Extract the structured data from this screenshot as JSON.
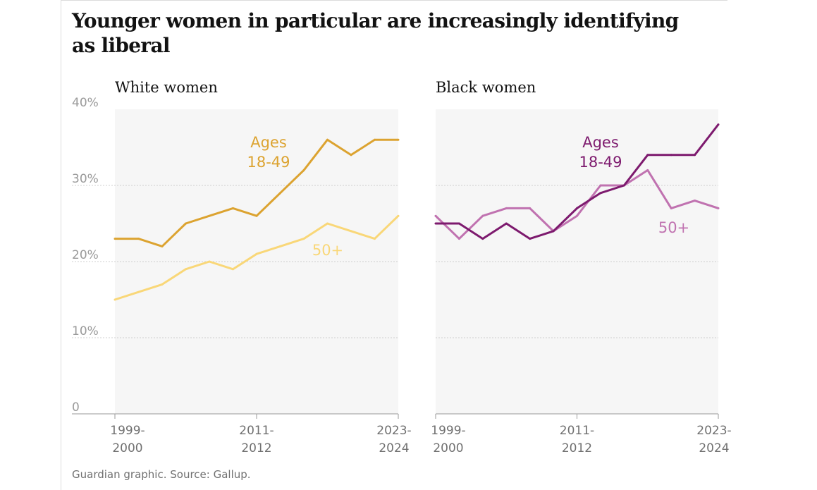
{
  "headline": "Younger women in particular are increasingly identifying as liberal",
  "source": "Guardian graphic. Source: Gallup.",
  "colors": {
    "panel_bg": "#f6f6f6",
    "gridline": "#cfcfcf",
    "tick_text": "#707070",
    "white_18_49": "#dca330",
    "white_50_plus": "#f9d778",
    "black_18_49": "#7d1a6e",
    "black_50_plus": "#c072b0"
  },
  "chart_data": [
    {
      "type": "line",
      "title": "White women",
      "x": [
        "1999-2000",
        "2001-2002",
        "2003-2004",
        "2005-2006",
        "2007-2008",
        "2009-2010",
        "2011-2012",
        "2013-2014",
        "2015-2016",
        "2017-2018",
        "2019-2020",
        "2021-2022",
        "2023-2024"
      ],
      "x_tick_labels": [
        [
          "1999-",
          "2000"
        ],
        [
          "2011-",
          "2012"
        ],
        [
          "2023-",
          "2024"
        ]
      ],
      "y_ticks": [
        "40%",
        "30%",
        "20%",
        "10%",
        "0"
      ],
      "ylim": [
        0,
        40
      ],
      "grid": true,
      "series": [
        {
          "name": "Ages 18-49",
          "label_lines": [
            "Ages",
            "18-49"
          ],
          "color": "#dca330",
          "values": [
            23,
            23,
            22,
            25,
            26,
            27,
            26,
            29,
            32,
            36,
            34,
            36,
            36
          ]
        },
        {
          "name": "50+",
          "label_lines": [
            "50+"
          ],
          "color": "#f9d778",
          "values": [
            15,
            16,
            17,
            19,
            20,
            19,
            21,
            22,
            23,
            25,
            24,
            23,
            26
          ]
        }
      ]
    },
    {
      "type": "line",
      "title": "Black women",
      "x": [
        "1999-2000",
        "2001-2002",
        "2003-2004",
        "2005-2006",
        "2007-2008",
        "2009-2010",
        "2011-2012",
        "2013-2014",
        "2015-2016",
        "2017-2018",
        "2019-2020",
        "2021-2022",
        "2023-2024"
      ],
      "x_tick_labels": [
        [
          "1999-",
          "2000"
        ],
        [
          "2011-",
          "2012"
        ],
        [
          "2023-",
          "2024"
        ]
      ],
      "ylim": [
        0,
        40
      ],
      "grid": true,
      "series": [
        {
          "name": "Ages 18-49",
          "label_lines": [
            "Ages",
            "18-49"
          ],
          "color": "#7d1a6e",
          "values": [
            25,
            25,
            23,
            25,
            23,
            24,
            27,
            29,
            30,
            34,
            34,
            34,
            38
          ]
        },
        {
          "name": "50+",
          "label_lines": [
            "50+"
          ],
          "color": "#c072b0",
          "values": [
            26,
            23,
            26,
            27,
            27,
            24,
            26,
            30,
            30,
            32,
            27,
            28,
            27
          ]
        }
      ]
    }
  ]
}
